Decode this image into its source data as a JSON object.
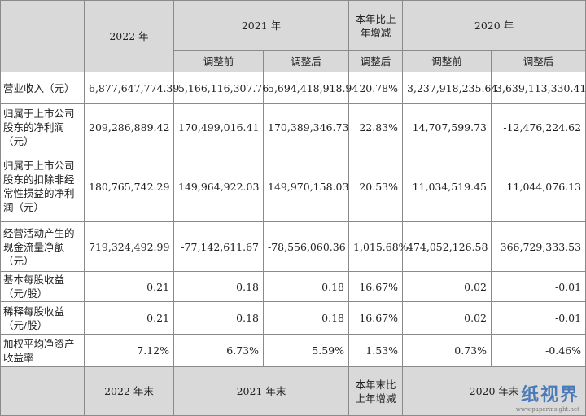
{
  "table": {
    "top_header": [
      "2022 年",
      "2021 年",
      "本年比上年增减",
      "2020 年"
    ],
    "sub_header": [
      "调整前",
      "调整后",
      "调整后",
      "调整前",
      "调整后"
    ],
    "rows": [
      [
        "营业收入（元）",
        "6,877,647,774.39",
        "5,166,116,307.76",
        "5,694,418,918.94",
        "20.78%",
        "3,237,918,235.64",
        "3,639,113,330.41"
      ],
      [
        "归属于上市公司股东的净利润（元）",
        "209,286,889.42",
        "170,499,016.41",
        "170,389,346.73",
        "22.83%",
        "14,707,599.73",
        "-12,476,224.62"
      ],
      [
        "归属于上市公司股东的扣除非经常性损益的净利润（元）",
        "180,765,742.29",
        "149,964,922.03",
        "149,970,158.03",
        "20.53%",
        "11,034,519.45",
        "11,044,076.13"
      ],
      [
        "经营活动产生的现金流量净额（元）",
        "719,324,492.99",
        "-77,142,611.67",
        "-78,556,060.36",
        "1,015.68%",
        "474,052,126.58",
        "366,729,333.53"
      ],
      [
        "基本每股收益（元/股）",
        "0.21",
        "0.18",
        "0.18",
        "16.67%",
        "0.02",
        "-0.01"
      ],
      [
        "稀释每股收益（元/股）",
        "0.21",
        "0.18",
        "0.18",
        "16.67%",
        "0.02",
        "-0.01"
      ],
      [
        "加权平均净资产收益率",
        "7.12%",
        "6.73%",
        "5.59%",
        "1.53%",
        "0.73%",
        "-0.46%"
      ]
    ],
    "bottom_header": [
      "2022 年末",
      "2021 年末",
      "本年末比上年增减",
      "2020 年末"
    ]
  },
  "watermark": {
    "brand": "纸视界",
    "url": "www.paperinsight.net"
  }
}
